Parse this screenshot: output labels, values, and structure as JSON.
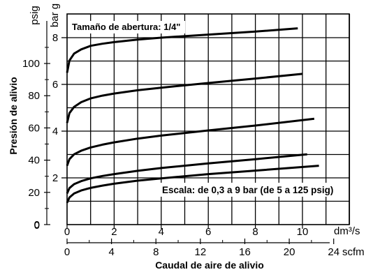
{
  "chart_data": {
    "type": "line",
    "title": "",
    "annotation_top": "Tamaño de abertura: 1/4\"",
    "annotation_scale": "Escala: de 0,3 a 9 bar (de 5 a 125 psig)",
    "xlabel": "Caudal de aire de alivio",
    "ylabel": "Presión de alivio",
    "x_unit_primary": "dm³/s",
    "x_unit_secondary": "scfm",
    "y_unit_psig": "psig",
    "y_unit_bar": "bar g",
    "xlim_dm3s": [
      0,
      12.5
    ],
    "ylim_bar": [
      0,
      9
    ],
    "x_ticks_dm3s": [
      "0",
      "2",
      "4",
      "6",
      "8",
      "10"
    ],
    "x_ticks_scfm": [
      "0",
      "4",
      "8",
      "12",
      "16",
      "20",
      "24"
    ],
    "y_ticks_bar": [
      "2",
      "4",
      "6",
      "8"
    ],
    "y_ticks_psig": [
      "0",
      "20",
      "40",
      "60",
      "80",
      "100"
    ],
    "y_tick_zero": "0",
    "grid": true,
    "series": [
      {
        "x": [
          0,
          0.1,
          0.3,
          0.6,
          1.0,
          1.5,
          2,
          3,
          4,
          6,
          8,
          10.7
        ],
        "y": [
          0.93,
          1.16,
          1.33,
          1.46,
          1.57,
          1.67,
          1.75,
          1.88,
          1.98,
          2.16,
          2.31,
          2.52
        ]
      },
      {
        "x": [
          0,
          0.1,
          0.3,
          0.6,
          1.0,
          1.5,
          2,
          3,
          4,
          6,
          8,
          10.2
        ],
        "y": [
          1.33,
          1.56,
          1.73,
          1.86,
          1.98,
          2.08,
          2.16,
          2.3,
          2.42,
          2.62,
          2.8,
          3.01
        ]
      },
      {
        "x": [
          0,
          0.1,
          0.3,
          0.6,
          1.0,
          1.5,
          2,
          3,
          4,
          6,
          8,
          10.5
        ],
        "y": [
          2.52,
          2.8,
          3.01,
          3.16,
          3.3,
          3.42,
          3.52,
          3.68,
          3.81,
          4.03,
          4.24,
          4.53
        ]
      },
      {
        "x": [
          0,
          0.1,
          0.3,
          0.6,
          1.0,
          1.5,
          2,
          3,
          4,
          6,
          8,
          10.0
        ],
        "y": [
          4.35,
          4.77,
          5.04,
          5.24,
          5.4,
          5.52,
          5.61,
          5.75,
          5.86,
          6.06,
          6.25,
          6.45
        ]
      },
      {
        "x": [
          0,
          0.1,
          0.3,
          0.6,
          1.0,
          1.5,
          2,
          3,
          4,
          6,
          8,
          9.8
        ],
        "y": [
          6.5,
          7.02,
          7.32,
          7.5,
          7.65,
          7.74,
          7.81,
          7.92,
          8.0,
          8.13,
          8.26,
          8.4
        ]
      }
    ]
  }
}
